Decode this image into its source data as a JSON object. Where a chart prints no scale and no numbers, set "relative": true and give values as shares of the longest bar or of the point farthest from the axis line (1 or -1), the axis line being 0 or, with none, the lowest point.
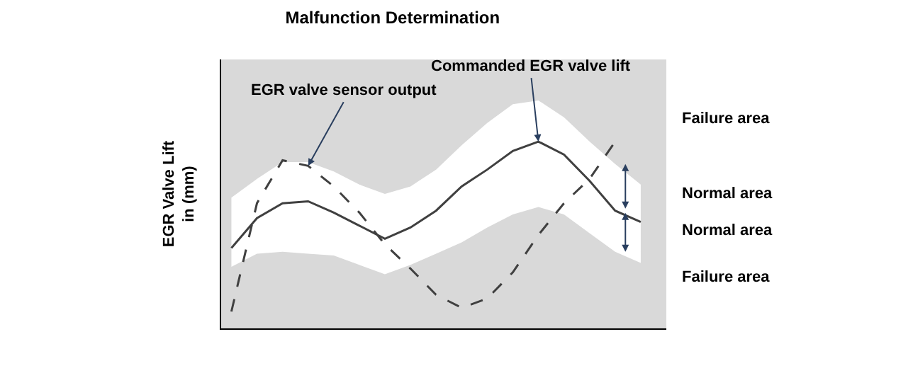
{
  "chart_data": {
    "type": "line",
    "relative": true,
    "title": "Malfunction Determination",
    "ylabel": "EGR Valve Lift\nin (mm)",
    "categories": [
      null,
      null,
      null,
      null,
      null,
      null,
      null,
      null,
      null,
      null,
      null,
      null,
      null,
      null,
      null,
      null,
      null
    ],
    "legend": false,
    "grid": false,
    "series": [
      {
        "name": "Commanded EGR valve lift",
        "color": "#404040",
        "line_style": "solid",
        "values": [
          0.43,
          0.59,
          0.67,
          0.68,
          0.62,
          0.55,
          0.48,
          0.54,
          0.63,
          0.76,
          0.85,
          0.95,
          1.0,
          0.93,
          0.79,
          0.63,
          0.57
        ],
        "lower": [
          0.33,
          0.4,
          0.41,
          0.4,
          0.39,
          0.34,
          0.29,
          0.34,
          0.4,
          0.46,
          0.54,
          0.61,
          0.65,
          0.61,
          0.51,
          0.41,
          0.35
        ],
        "upper": [
          0.7,
          0.8,
          0.89,
          0.89,
          0.84,
          0.77,
          0.72,
          0.76,
          0.85,
          0.98,
          1.1,
          1.2,
          1.22,
          1.13,
          1.0,
          0.88,
          0.77
        ]
      },
      {
        "name": "EGR valve sensor output",
        "color": "#404040",
        "line_style": "dashed",
        "values": [
          0.09,
          0.67,
          0.9,
          0.87,
          0.76,
          0.62,
          0.45,
          0.32,
          0.18,
          0.11,
          0.16,
          0.3,
          0.5,
          0.67,
          0.8,
          1.0,
          null
        ]
      }
    ],
    "annotations": [
      "Failure area",
      "Normal area",
      "Normal area",
      "Failure area"
    ]
  }
}
